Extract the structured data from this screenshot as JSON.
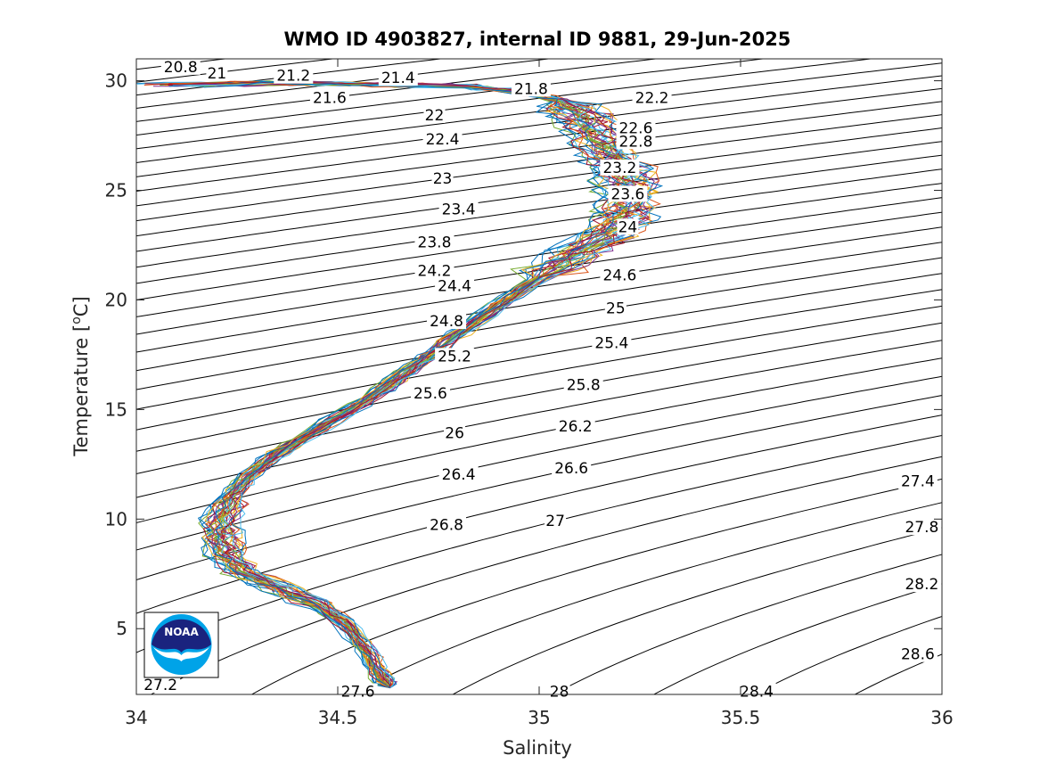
{
  "chart_data": {
    "type": "line",
    "title": "WMO ID 4903827, internal ID 9881, 29-Jun-2025",
    "xlabel": "Salinity",
    "ylabel": "Temperature [",
    "ylabel_unit": "o",
    "ylabel_end": "C]",
    "xlim": [
      34,
      36
    ],
    "ylim": [
      2,
      31
    ],
    "x_ticks": [
      34,
      34.5,
      35,
      35.5,
      36
    ],
    "x_tick_labels": [
      "34",
      "34.5",
      "35",
      "35.5",
      "36"
    ],
    "y_ticks": [
      5,
      10,
      15,
      20,
      25,
      30
    ],
    "y_tick_labels": [
      "5",
      "10",
      "15",
      "20",
      "25",
      "30"
    ],
    "grid": false,
    "legend": "none",
    "logo_text": "NOAA",
    "density_contours": {
      "levels_start": 20.8,
      "levels_step": 0.2,
      "levels_end": 28.8,
      "labels": [
        {
          "text": "20.8",
          "s": 34.11,
          "t": 30.6
        },
        {
          "text": "21",
          "s": 34.2,
          "t": 30.3
        },
        {
          "text": "21.2",
          "s": 34.39,
          "t": 30.2
        },
        {
          "text": "21.4",
          "s": 34.65,
          "t": 30.1
        },
        {
          "text": "21.6",
          "s": 34.48,
          "t": 29.2
        },
        {
          "text": "21.8",
          "s": 34.98,
          "t": 29.6
        },
        {
          "text": "22.2",
          "s": 35.28,
          "t": 29.2
        },
        {
          "text": "22",
          "s": 34.74,
          "t": 28.4
        },
        {
          "text": "22.6",
          "s": 35.24,
          "t": 27.8
        },
        {
          "text": "22.4",
          "s": 34.76,
          "t": 27.3
        },
        {
          "text": "22.8",
          "s": 35.24,
          "t": 27.2
        },
        {
          "text": "23.2",
          "s": 35.2,
          "t": 26.0
        },
        {
          "text": "23",
          "s": 34.76,
          "t": 25.5
        },
        {
          "text": "23.6",
          "s": 35.22,
          "t": 24.8
        },
        {
          "text": "23.4",
          "s": 34.8,
          "t": 24.1
        },
        {
          "text": "24",
          "s": 35.22,
          "t": 23.3
        },
        {
          "text": "23.8",
          "s": 34.74,
          "t": 22.6
        },
        {
          "text": "24.2",
          "s": 34.74,
          "t": 21.3
        },
        {
          "text": "24.6",
          "s": 35.2,
          "t": 21.1
        },
        {
          "text": "24.4",
          "s": 34.79,
          "t": 20.6
        },
        {
          "text": "25",
          "s": 35.19,
          "t": 19.6
        },
        {
          "text": "24.8",
          "s": 34.77,
          "t": 19.0
        },
        {
          "text": "25.4",
          "s": 35.18,
          "t": 18.0
        },
        {
          "text": "25.2",
          "s": 34.79,
          "t": 17.4
        },
        {
          "text": "25.8",
          "s": 35.11,
          "t": 16.1
        },
        {
          "text": "25.6",
          "s": 34.73,
          "t": 15.7
        },
        {
          "text": "26.2",
          "s": 35.09,
          "t": 14.2
        },
        {
          "text": "26",
          "s": 34.79,
          "t": 13.9
        },
        {
          "text": "26.6",
          "s": 35.08,
          "t": 12.3
        },
        {
          "text": "26.4",
          "s": 34.8,
          "t": 12.0
        },
        {
          "text": "27.4",
          "s": 35.94,
          "t": 11.7
        },
        {
          "text": "27",
          "s": 35.04,
          "t": 9.9
        },
        {
          "text": "26.8",
          "s": 34.77,
          "t": 9.7
        },
        {
          "text": "27.8",
          "s": 35.95,
          "t": 9.6
        },
        {
          "text": "28.2",
          "s": 35.95,
          "t": 7.0
        },
        {
          "text": "28.6",
          "s": 35.94,
          "t": 3.8
        },
        {
          "text": "27.2",
          "s": 34.06,
          "t": 2.4
        },
        {
          "text": "27.6",
          "s": 34.55,
          "t": 2.1
        },
        {
          "text": "28",
          "s": 35.05,
          "t": 2.1
        },
        {
          "text": "28.4",
          "s": 35.54,
          "t": 2.1
        }
      ]
    },
    "profile_colors": [
      "#0072BD",
      "#D95319",
      "#EDB120",
      "#7E2F8E",
      "#77AC30",
      "#4DBEEE",
      "#A2142F"
    ],
    "profile_count": 36,
    "series": [
      {
        "points": [
          [
            34.18,
            29.8
          ],
          [
            34.4,
            29.9
          ],
          [
            34.62,
            29.85
          ],
          [
            34.82,
            29.75
          ],
          [
            34.95,
            29.5
          ],
          [
            35.05,
            29.1
          ],
          [
            35.1,
            28.4
          ],
          [
            35.14,
            27.6
          ],
          [
            35.16,
            26.8
          ],
          [
            35.2,
            26.0
          ],
          [
            35.22,
            25.2
          ],
          [
            35.22,
            24.4
          ],
          [
            35.2,
            23.6
          ],
          [
            35.16,
            22.9
          ],
          [
            35.08,
            22.0
          ],
          [
            35.0,
            21.0
          ],
          [
            34.9,
            19.8
          ],
          [
            34.8,
            18.5
          ],
          [
            34.72,
            17.4
          ],
          [
            34.64,
            16.3
          ],
          [
            34.55,
            15.2
          ],
          [
            34.45,
            14.1
          ],
          [
            34.35,
            13.0
          ],
          [
            34.28,
            12.0
          ],
          [
            34.23,
            11.0
          ],
          [
            34.21,
            10.0
          ],
          [
            34.21,
            9.2
          ],
          [
            34.22,
            8.4
          ],
          [
            34.26,
            7.6
          ],
          [
            34.36,
            6.8
          ],
          [
            34.46,
            6.0
          ],
          [
            34.53,
            5.0
          ],
          [
            34.57,
            4.0
          ],
          [
            34.6,
            3.0
          ],
          [
            34.63,
            2.3
          ]
        ]
      }
    ]
  }
}
